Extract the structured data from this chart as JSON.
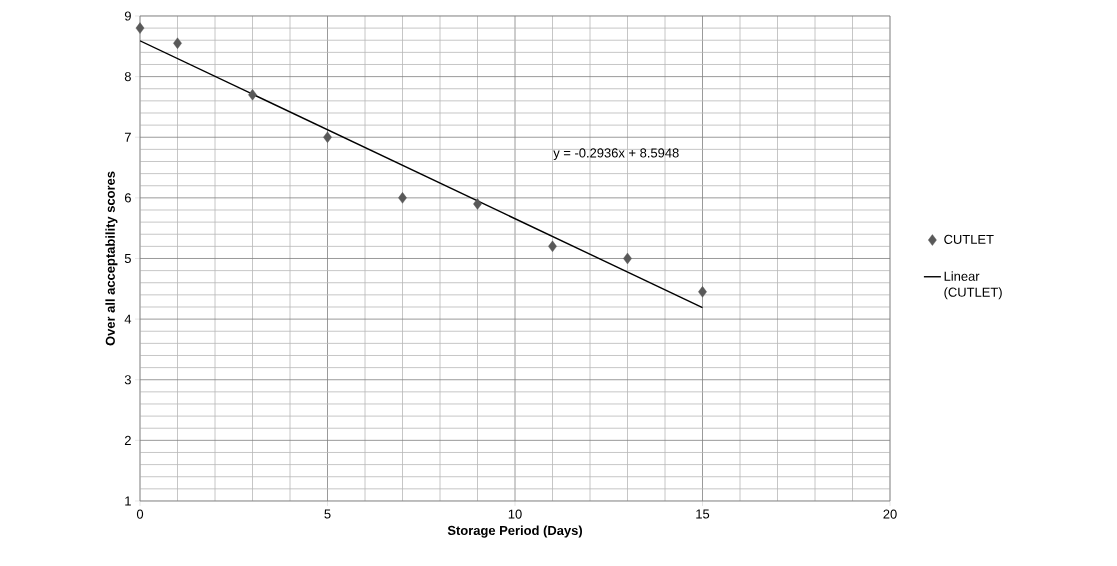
{
  "chart_data": {
    "type": "scatter",
    "xlabel": "Storage Period (Days)",
    "ylabel": "Over all acceptability  scores",
    "xlim": [
      0,
      20
    ],
    "ylim": [
      1,
      9
    ],
    "xticks": [
      0,
      5,
      10,
      15,
      20
    ],
    "yticks": [
      1,
      2,
      3,
      4,
      5,
      6,
      7,
      8,
      9
    ],
    "grid": true,
    "legend": "right",
    "marker": "diamond",
    "series": [
      {
        "name": "CUTLET",
        "color": "#595959",
        "x": [
          0,
          1,
          3,
          5,
          7,
          9,
          11,
          13,
          15
        ],
        "values": [
          8.8,
          8.55,
          7.7,
          7.0,
          6.0,
          5.9,
          5.2,
          5.0,
          4.45
        ]
      },
      {
        "name": "Linear (CUTLET)",
        "type": "line",
        "marker": "none",
        "color": "#000000",
        "x": [
          0,
          15
        ],
        "values": [
          8.59,
          4.19
        ]
      }
    ],
    "annotations": [
      "y = -0.2936x + 8.5948"
    ]
  }
}
